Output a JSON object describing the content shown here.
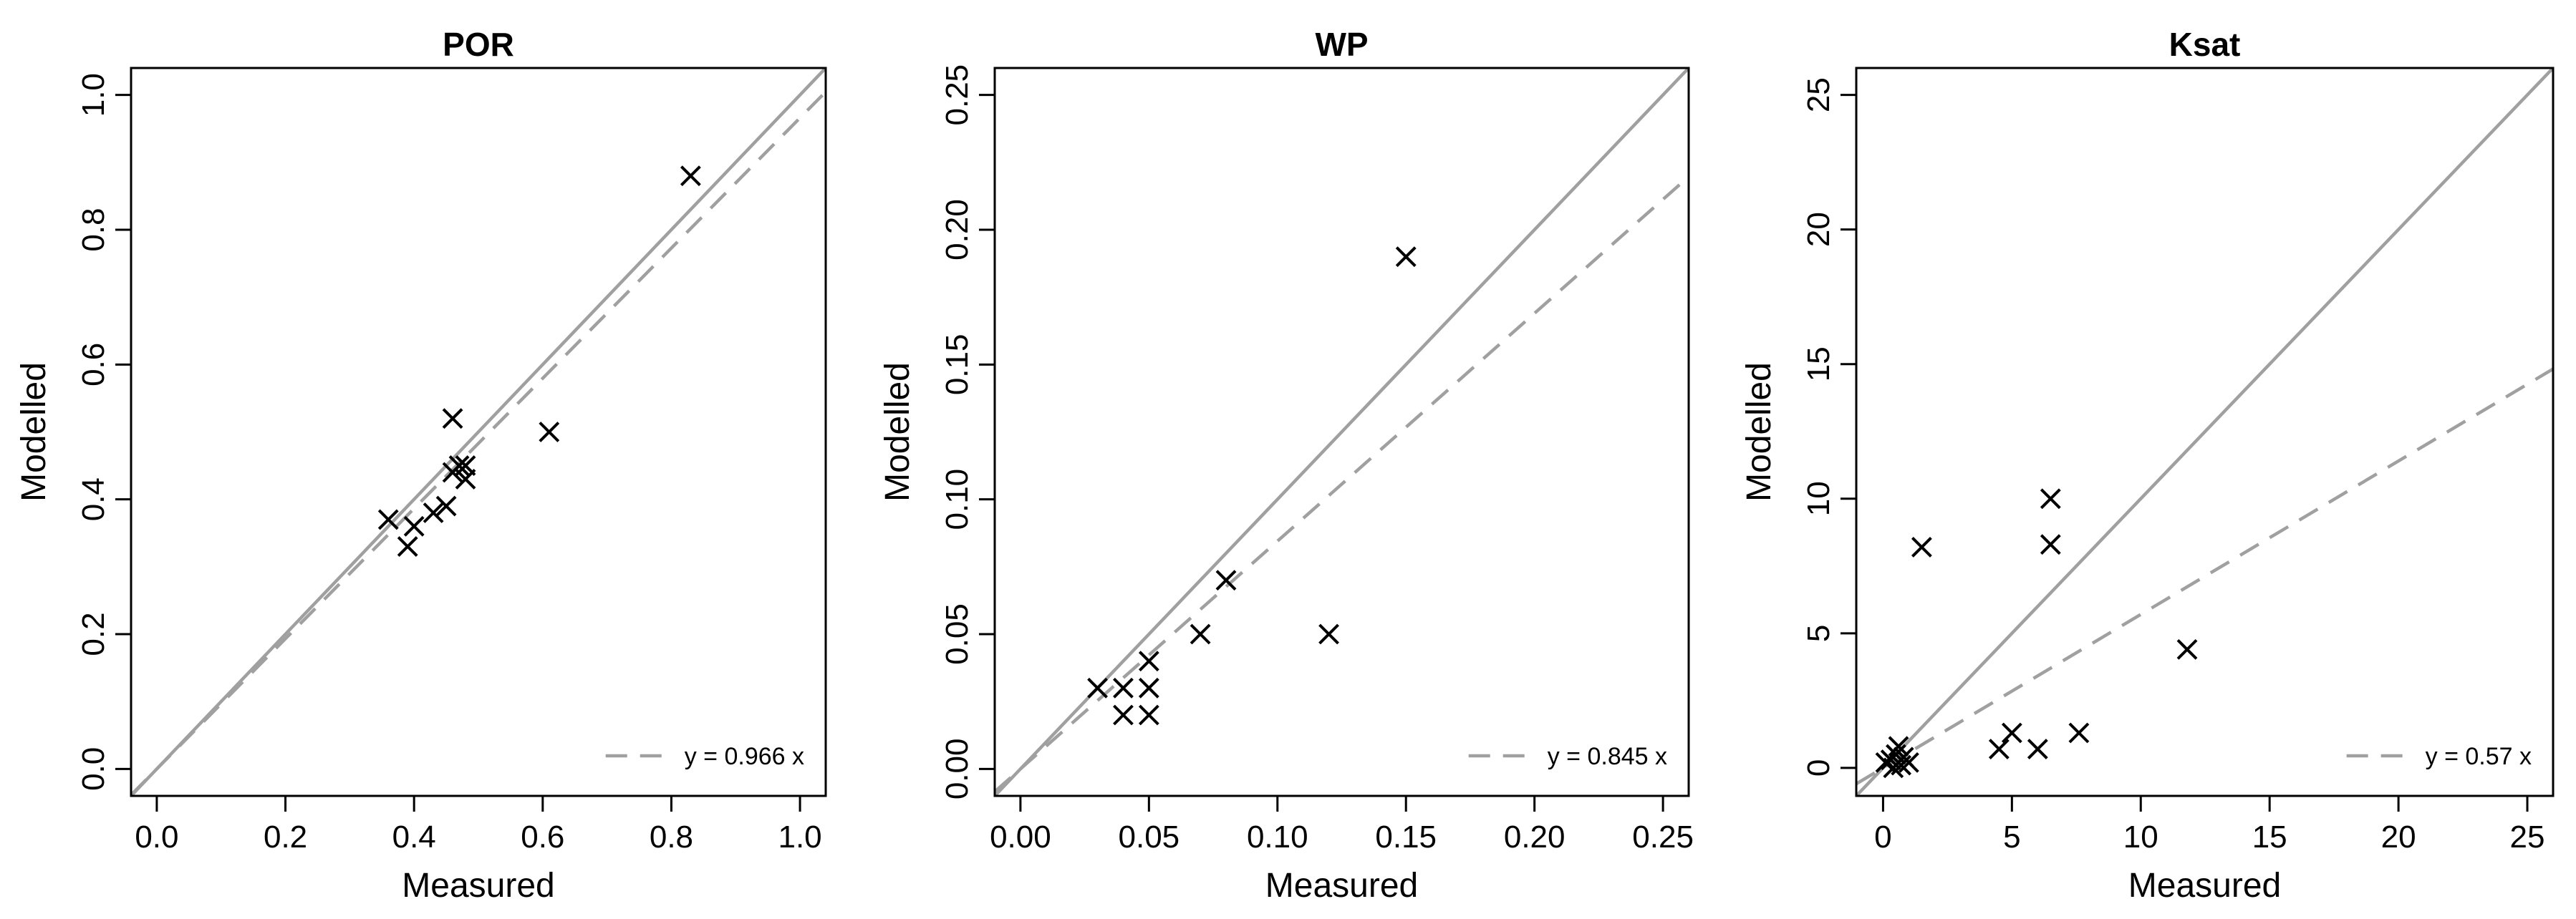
{
  "chart_data": [
    {
      "type": "scatter",
      "title": "POR",
      "xlabel": "Measured",
      "ylabel": "Modelled",
      "xlim": [
        -0.04,
        1.04
      ],
      "ylim": [
        -0.04,
        1.04
      ],
      "xticks": [
        0.0,
        0.2,
        0.4,
        0.6,
        0.8,
        1.0
      ],
      "yticks": [
        0.0,
        0.2,
        0.4,
        0.6,
        0.8,
        1.0
      ],
      "x_tick_labels": [
        "0.0",
        "0.2",
        "0.4",
        "0.6",
        "0.8",
        "1.0"
      ],
      "y_tick_labels": [
        "0.0",
        "0.2",
        "0.4",
        "0.6",
        "0.8",
        "1.0"
      ],
      "grid": false,
      "one_to_one_line": true,
      "fit_slope": 0.966,
      "legend_text": "y =  0.966 x",
      "legend_position": "bottom-right",
      "points": [
        {
          "x": 0.36,
          "y": 0.37
        },
        {
          "x": 0.39,
          "y": 0.33
        },
        {
          "x": 0.4,
          "y": 0.36
        },
        {
          "x": 0.43,
          "y": 0.38
        },
        {
          "x": 0.45,
          "y": 0.39
        },
        {
          "x": 0.46,
          "y": 0.52
        },
        {
          "x": 0.46,
          "y": 0.44
        },
        {
          "x": 0.47,
          "y": 0.45
        },
        {
          "x": 0.48,
          "y": 0.43
        },
        {
          "x": 0.48,
          "y": 0.45
        },
        {
          "x": 0.61,
          "y": 0.5
        },
        {
          "x": 0.83,
          "y": 0.88
        }
      ]
    },
    {
      "type": "scatter",
      "title": "WP",
      "xlabel": "Measured",
      "ylabel": "Modelled",
      "xlim": [
        -0.01,
        0.26
      ],
      "ylim": [
        -0.01,
        0.26
      ],
      "xticks": [
        0.0,
        0.05,
        0.1,
        0.15,
        0.2,
        0.25
      ],
      "yticks": [
        0.0,
        0.05,
        0.1,
        0.15,
        0.2,
        0.25
      ],
      "x_tick_labels": [
        "0.00",
        "0.05",
        "0.10",
        "0.15",
        "0.20",
        "0.25"
      ],
      "y_tick_labels": [
        "0.00",
        "0.05",
        "0.10",
        "0.15",
        "0.20",
        "0.25"
      ],
      "grid": false,
      "one_to_one_line": true,
      "fit_slope": 0.845,
      "legend_text": "y =  0.845 x",
      "legend_position": "bottom-right",
      "points": [
        {
          "x": 0.03,
          "y": 0.03
        },
        {
          "x": 0.04,
          "y": 0.03
        },
        {
          "x": 0.04,
          "y": 0.02
        },
        {
          "x": 0.05,
          "y": 0.04
        },
        {
          "x": 0.05,
          "y": 0.03
        },
        {
          "x": 0.05,
          "y": 0.02
        },
        {
          "x": 0.07,
          "y": 0.05
        },
        {
          "x": 0.08,
          "y": 0.07
        },
        {
          "x": 0.12,
          "y": 0.05
        },
        {
          "x": 0.15,
          "y": 0.19
        }
      ]
    },
    {
      "type": "scatter",
      "title": "Ksat",
      "xlabel": "Measured",
      "ylabel": "Modelled",
      "xlim": [
        -1.04,
        26.0
      ],
      "ylim": [
        -1.04,
        26.0
      ],
      "xticks": [
        0,
        5,
        10,
        15,
        20,
        25
      ],
      "yticks": [
        0,
        5,
        10,
        15,
        20,
        25
      ],
      "x_tick_labels": [
        "0",
        "5",
        "10",
        "15",
        "20",
        "25"
      ],
      "y_tick_labels": [
        "0",
        "5",
        "10",
        "15",
        "20",
        "25"
      ],
      "grid": false,
      "one_to_one_line": true,
      "fit_slope": 0.57,
      "legend_text": "y =  0.57 x",
      "legend_position": "bottom-right",
      "points": [
        {
          "x": 0.1,
          "y": 0.2
        },
        {
          "x": 0.3,
          "y": 0.3
        },
        {
          "x": 0.4,
          "y": 0.0
        },
        {
          "x": 0.5,
          "y": 0.5
        },
        {
          "x": 0.6,
          "y": 0.8
        },
        {
          "x": 0.7,
          "y": 0.1
        },
        {
          "x": 0.8,
          "y": 0.4
        },
        {
          "x": 1.0,
          "y": 0.2
        },
        {
          "x": 1.5,
          "y": 8.2
        },
        {
          "x": 4.5,
          "y": 0.7
        },
        {
          "x": 5.0,
          "y": 1.3
        },
        {
          "x": 6.0,
          "y": 0.7
        },
        {
          "x": 6.5,
          "y": 10.0
        },
        {
          "x": 6.5,
          "y": 8.3
        },
        {
          "x": 7.6,
          "y": 1.3
        },
        {
          "x": 11.8,
          "y": 4.4
        }
      ]
    }
  ]
}
